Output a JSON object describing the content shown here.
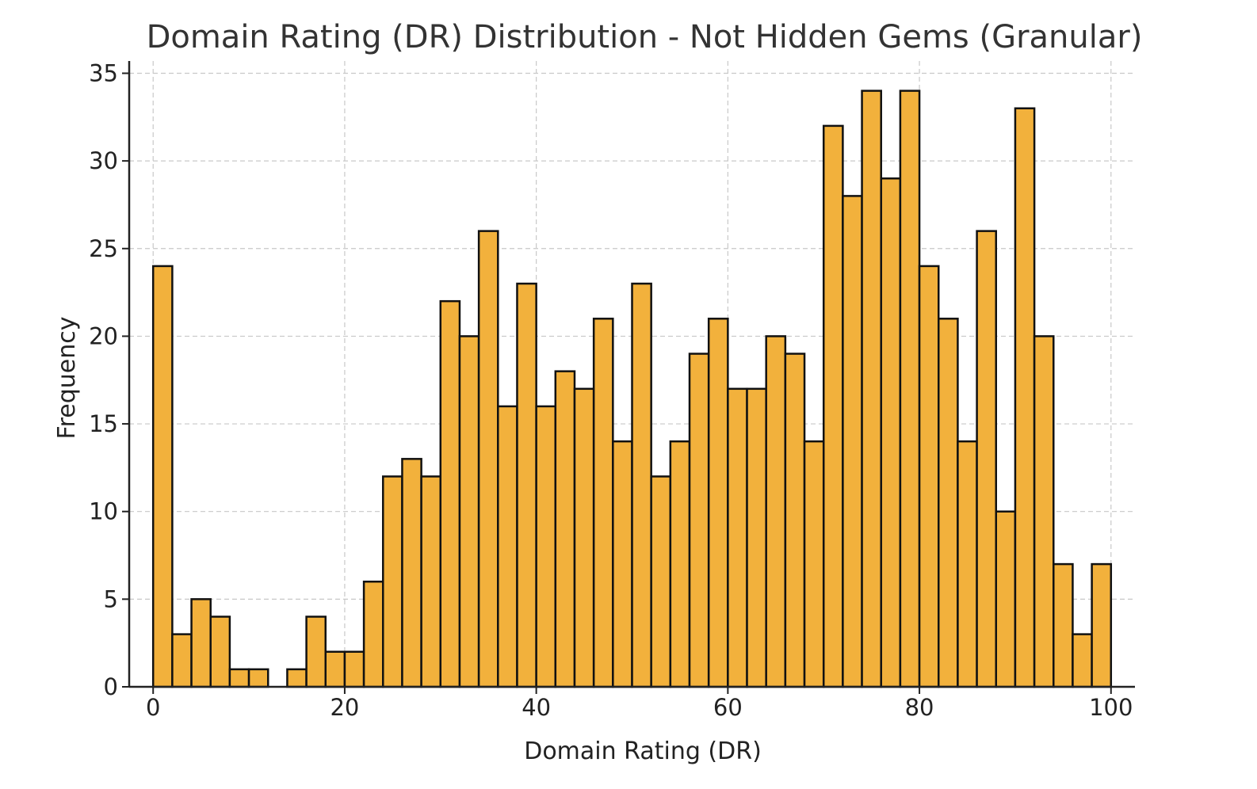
{
  "chart_data": {
    "type": "bar",
    "title": "Domain Rating (DR) Distribution - Not Hidden Gems (Granular)",
    "xlabel": "Domain Rating (DR)",
    "ylabel": "Frequency",
    "xlim": [
      -2.5,
      102.5
    ],
    "ylim": [
      0,
      35.7
    ],
    "xticks": [
      0,
      20,
      40,
      60,
      80,
      100
    ],
    "yticks": [
      0,
      5,
      10,
      15,
      20,
      25,
      30,
      35
    ],
    "grid": true,
    "bar_color": "#F2B13C",
    "edge_color": "#111111",
    "bin_start": 0,
    "bin_width": 2,
    "values": [
      24,
      3,
      5,
      4,
      1,
      1,
      0,
      1,
      4,
      2,
      2,
      6,
      12,
      13,
      12,
      22,
      20,
      26,
      16,
      23,
      16,
      18,
      17,
      21,
      14,
      23,
      12,
      14,
      19,
      21,
      17,
      17,
      20,
      19,
      14,
      32,
      28,
      34,
      29,
      34,
      24,
      21,
      14,
      26,
      10,
      33,
      20,
      7,
      3,
      7
    ]
  }
}
